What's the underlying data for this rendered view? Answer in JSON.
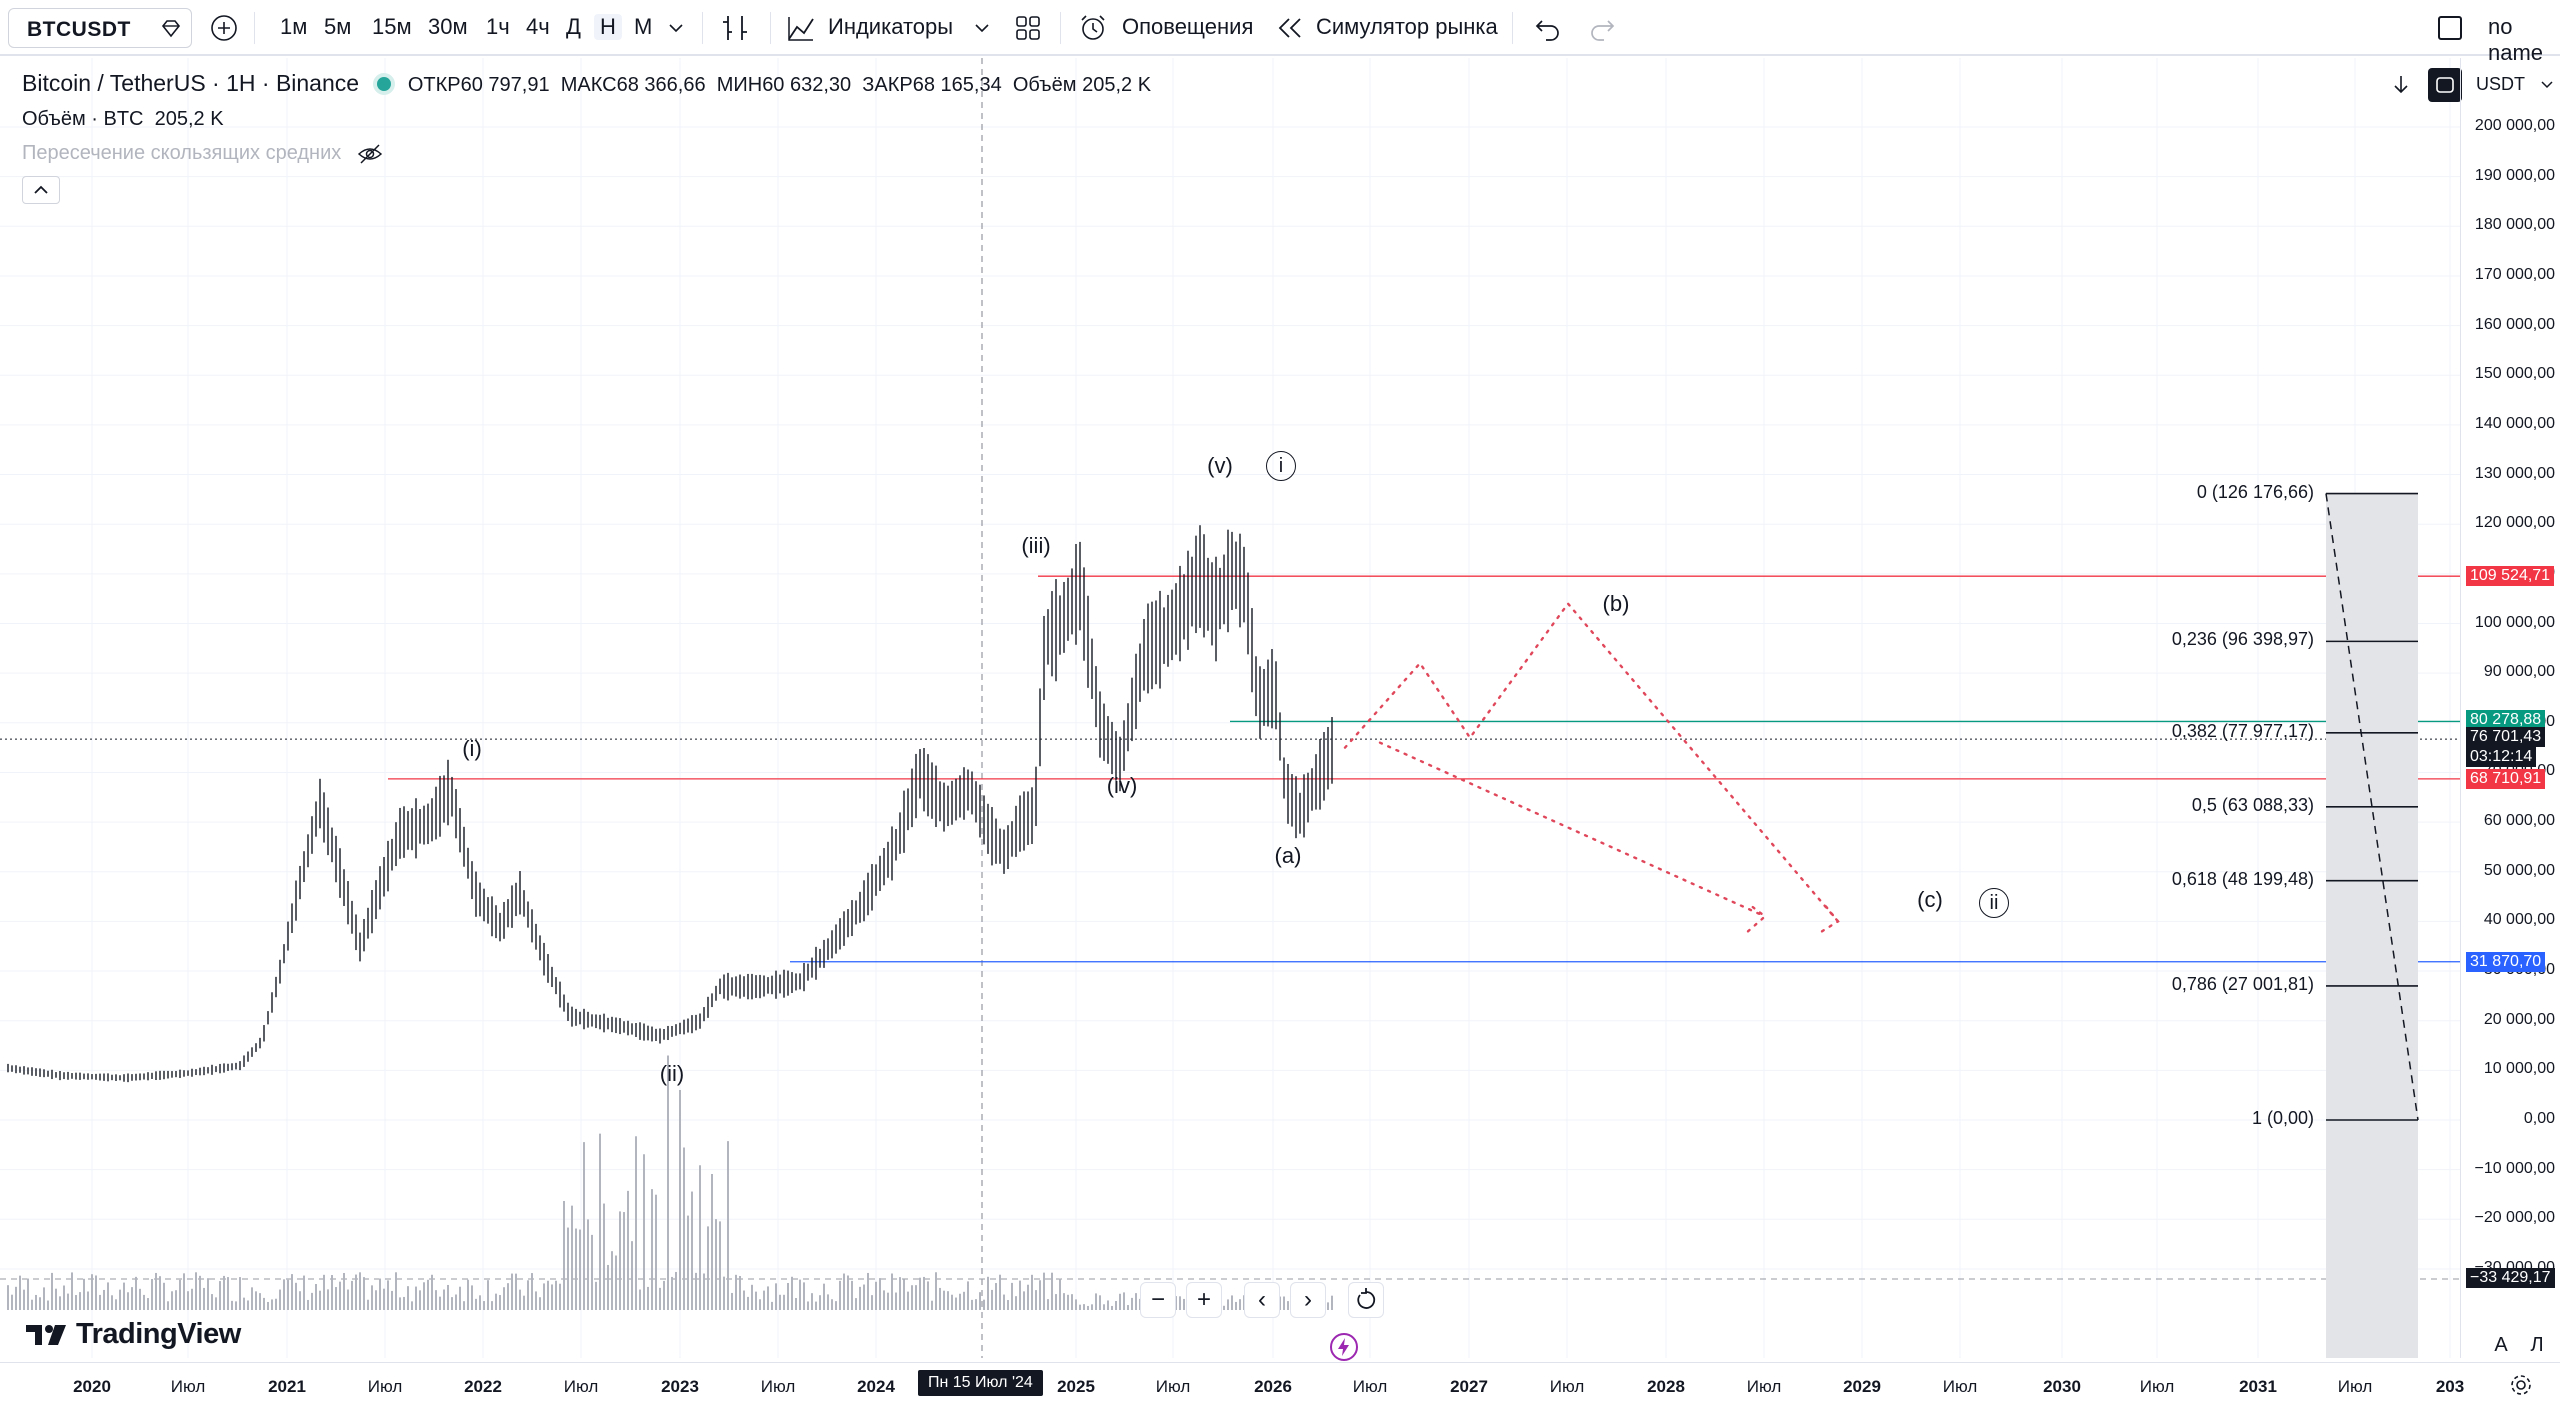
{
  "toolbar": {
    "symbol": "BTCUSDT",
    "timeframes": [
      "1м",
      "5м",
      "15м",
      "30м",
      "1ч",
      "4ч",
      "Д",
      "Н",
      "М"
    ],
    "active_timeframe": "Н",
    "indicators_label": "Индикаторы",
    "alerts_label": "Оповещения",
    "simulator_label": "Симулятор рынка",
    "layout_name": "no name"
  },
  "legend": {
    "title": "Bitcoin / TetherUS · 1Н · Binance",
    "open_label": "ОТКР",
    "open": "60 797,91",
    "high_label": "МАКС",
    "high": "68 366,66",
    "low_label": "МИН",
    "low": "60 632,30",
    "close_label": "ЗАКР",
    "close": "68 165,34",
    "vol_label": "Объём",
    "vol": "205,2 K",
    "volume_line_label": "Объём · BTC",
    "volume_line_value": "205,2 K",
    "indicator_name": "Пересечение скользящих средних"
  },
  "currency": "USDT",
  "price_ticks": [
    "200 000,00",
    "190 000,00",
    "180 000,00",
    "170 000,00",
    "160 000,00",
    "150 000,00",
    "140 000,00",
    "130 000,00",
    "120 000,00",
    "110 000,00",
    "100 000,00",
    "90 000,00",
    "80 000,00",
    "70 000,00",
    "60 000,00",
    "50 000,00",
    "40 000,00",
    "30 000,00",
    "20 000,00",
    "10 000,00",
    "0,00",
    "−10 000,00",
    "−20 000,00",
    "−30 000,00"
  ],
  "time_ticks": [
    "2020",
    "Июл",
    "2021",
    "Июл",
    "2022",
    "Июл",
    "2023",
    "Июл",
    "2024",
    "2025",
    "Июл",
    "2026",
    "Июл",
    "2027",
    "Июл",
    "2028",
    "Июл",
    "2029",
    "Июл",
    "2030",
    "Июл",
    "2031",
    "Июл",
    "203"
  ],
  "crosshair_time": "Пн 15 Июл '24",
  "price_tags": {
    "red_top": "109 524,71",
    "teal": "80 278,88",
    "last": "76 701,43",
    "countdown": "03:12:14",
    "red_mid": "68 710,91",
    "blue": "31 870,70",
    "bottom": "−33 429,17"
  },
  "fib_levels": [
    {
      "label": "0 (126 176,66)",
      "price": 126176.66
    },
    {
      "label": "0,236 (96 398,97)",
      "price": 96398.97
    },
    {
      "label": "0,382 (77 977,17)",
      "price": 77977.17
    },
    {
      "label": "0,5 (63 088,33)",
      "price": 63088.33
    },
    {
      "label": "0,618 (48 199,48)",
      "price": 48199.48
    },
    {
      "label": "0,786 (27 001,81)",
      "price": 27001.81
    },
    {
      "label": "1 (0,00)",
      "price": 0
    }
  ],
  "wave_labels": [
    "(i)",
    "(ii)",
    "(iii)",
    "(iv)",
    "(v)",
    "(a)",
    "(b)",
    "(c)"
  ],
  "circle_labels": [
    "i",
    "ii"
  ],
  "bottom_controls": {
    "zoom_out": "−",
    "zoom_in": "+",
    "back": "‹",
    "forward": "›"
  },
  "branding": "TradingView",
  "axis_buttons": [
    "A",
    "Л"
  ]
}
